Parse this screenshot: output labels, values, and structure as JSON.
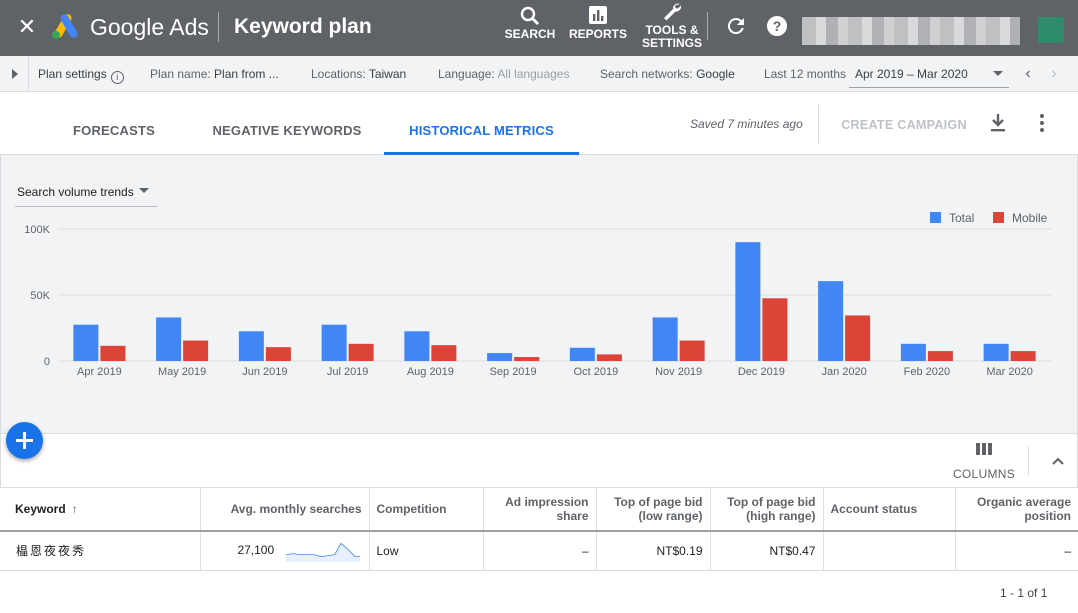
{
  "topbar": {
    "brand": "Google Ads",
    "title": "Keyword plan",
    "nav": [
      {
        "label": "SEARCH",
        "icon": "search-icon"
      },
      {
        "label": "REPORTS",
        "icon": "bar-chart-icon"
      },
      {
        "label": "TOOLS &",
        "label2": "SETTINGS",
        "icon": "wrench-icon"
      }
    ],
    "icons": [
      "close-icon",
      "refresh-icon",
      "help-icon"
    ]
  },
  "settings": {
    "plan_settings": "Plan settings",
    "plan_name_label": "Plan name:",
    "plan_name_value": "Plan from ...",
    "locations_label": "Locations:",
    "locations_value": "Taiwan",
    "language_label": "Language:",
    "language_value": "All languages",
    "networks_label": "Search networks:",
    "networks_value": "Google",
    "period_label": "Last 12 months",
    "period_value": "Apr 2019 – Mar 2020"
  },
  "tabs": [
    {
      "label": "FORECASTS",
      "active": false
    },
    {
      "label": "NEGATIVE KEYWORDS",
      "active": false
    },
    {
      "label": "HISTORICAL METRICS",
      "active": true
    }
  ],
  "toolbar": {
    "saved_text": "Saved 7 minutes ago",
    "create_campaign": "CREATE CAMPAIGN"
  },
  "chart_controls": {
    "trend_select": "Search volume trends"
  },
  "chart_data": {
    "type": "bar",
    "categories": [
      "Apr 2019",
      "May 2019",
      "Jun 2019",
      "Jul 2019",
      "Aug 2019",
      "Sep 2019",
      "Oct 2019",
      "Nov 2019",
      "Dec 2019",
      "Jan 2020",
      "Feb 2020",
      "Mar 2020"
    ],
    "series": [
      {
        "name": "Total",
        "color": "#4285f4",
        "values": [
          27500,
          33000,
          22500,
          27500,
          22500,
          6000,
          10000,
          33000,
          90000,
          60500,
          13000,
          13000
        ]
      },
      {
        "name": "Mobile",
        "color": "#db4437",
        "values": [
          11500,
          15500,
          10500,
          13000,
          12000,
          3000,
          5000,
          15500,
          47500,
          34500,
          7500,
          7500
        ]
      }
    ],
    "y_ticks": [
      "0",
      "50K",
      "100K"
    ],
    "ylim": [
      0,
      100000
    ],
    "legend_position": "top-right",
    "grid": true
  },
  "table_toolbar": {
    "columns_label": "COLUMNS"
  },
  "table": {
    "headers": [
      "Keyword",
      "Avg. monthly searches",
      "Competition",
      "Ad impression share",
      "Top of page bid (low range)",
      "Top of page bid (high range)",
      "Account status",
      "Organic average position"
    ],
    "rows": [
      {
        "keyword": "橸恩夜夜秀",
        "avg_monthly_searches": "27,100",
        "competition": "Low",
        "ad_impression_share": "–",
        "bid_low": "NT$0.19",
        "bid_high": "NT$0.47",
        "account_status": "",
        "organic_position": "–"
      }
    ],
    "pagination": "1 - 1 of 1"
  }
}
